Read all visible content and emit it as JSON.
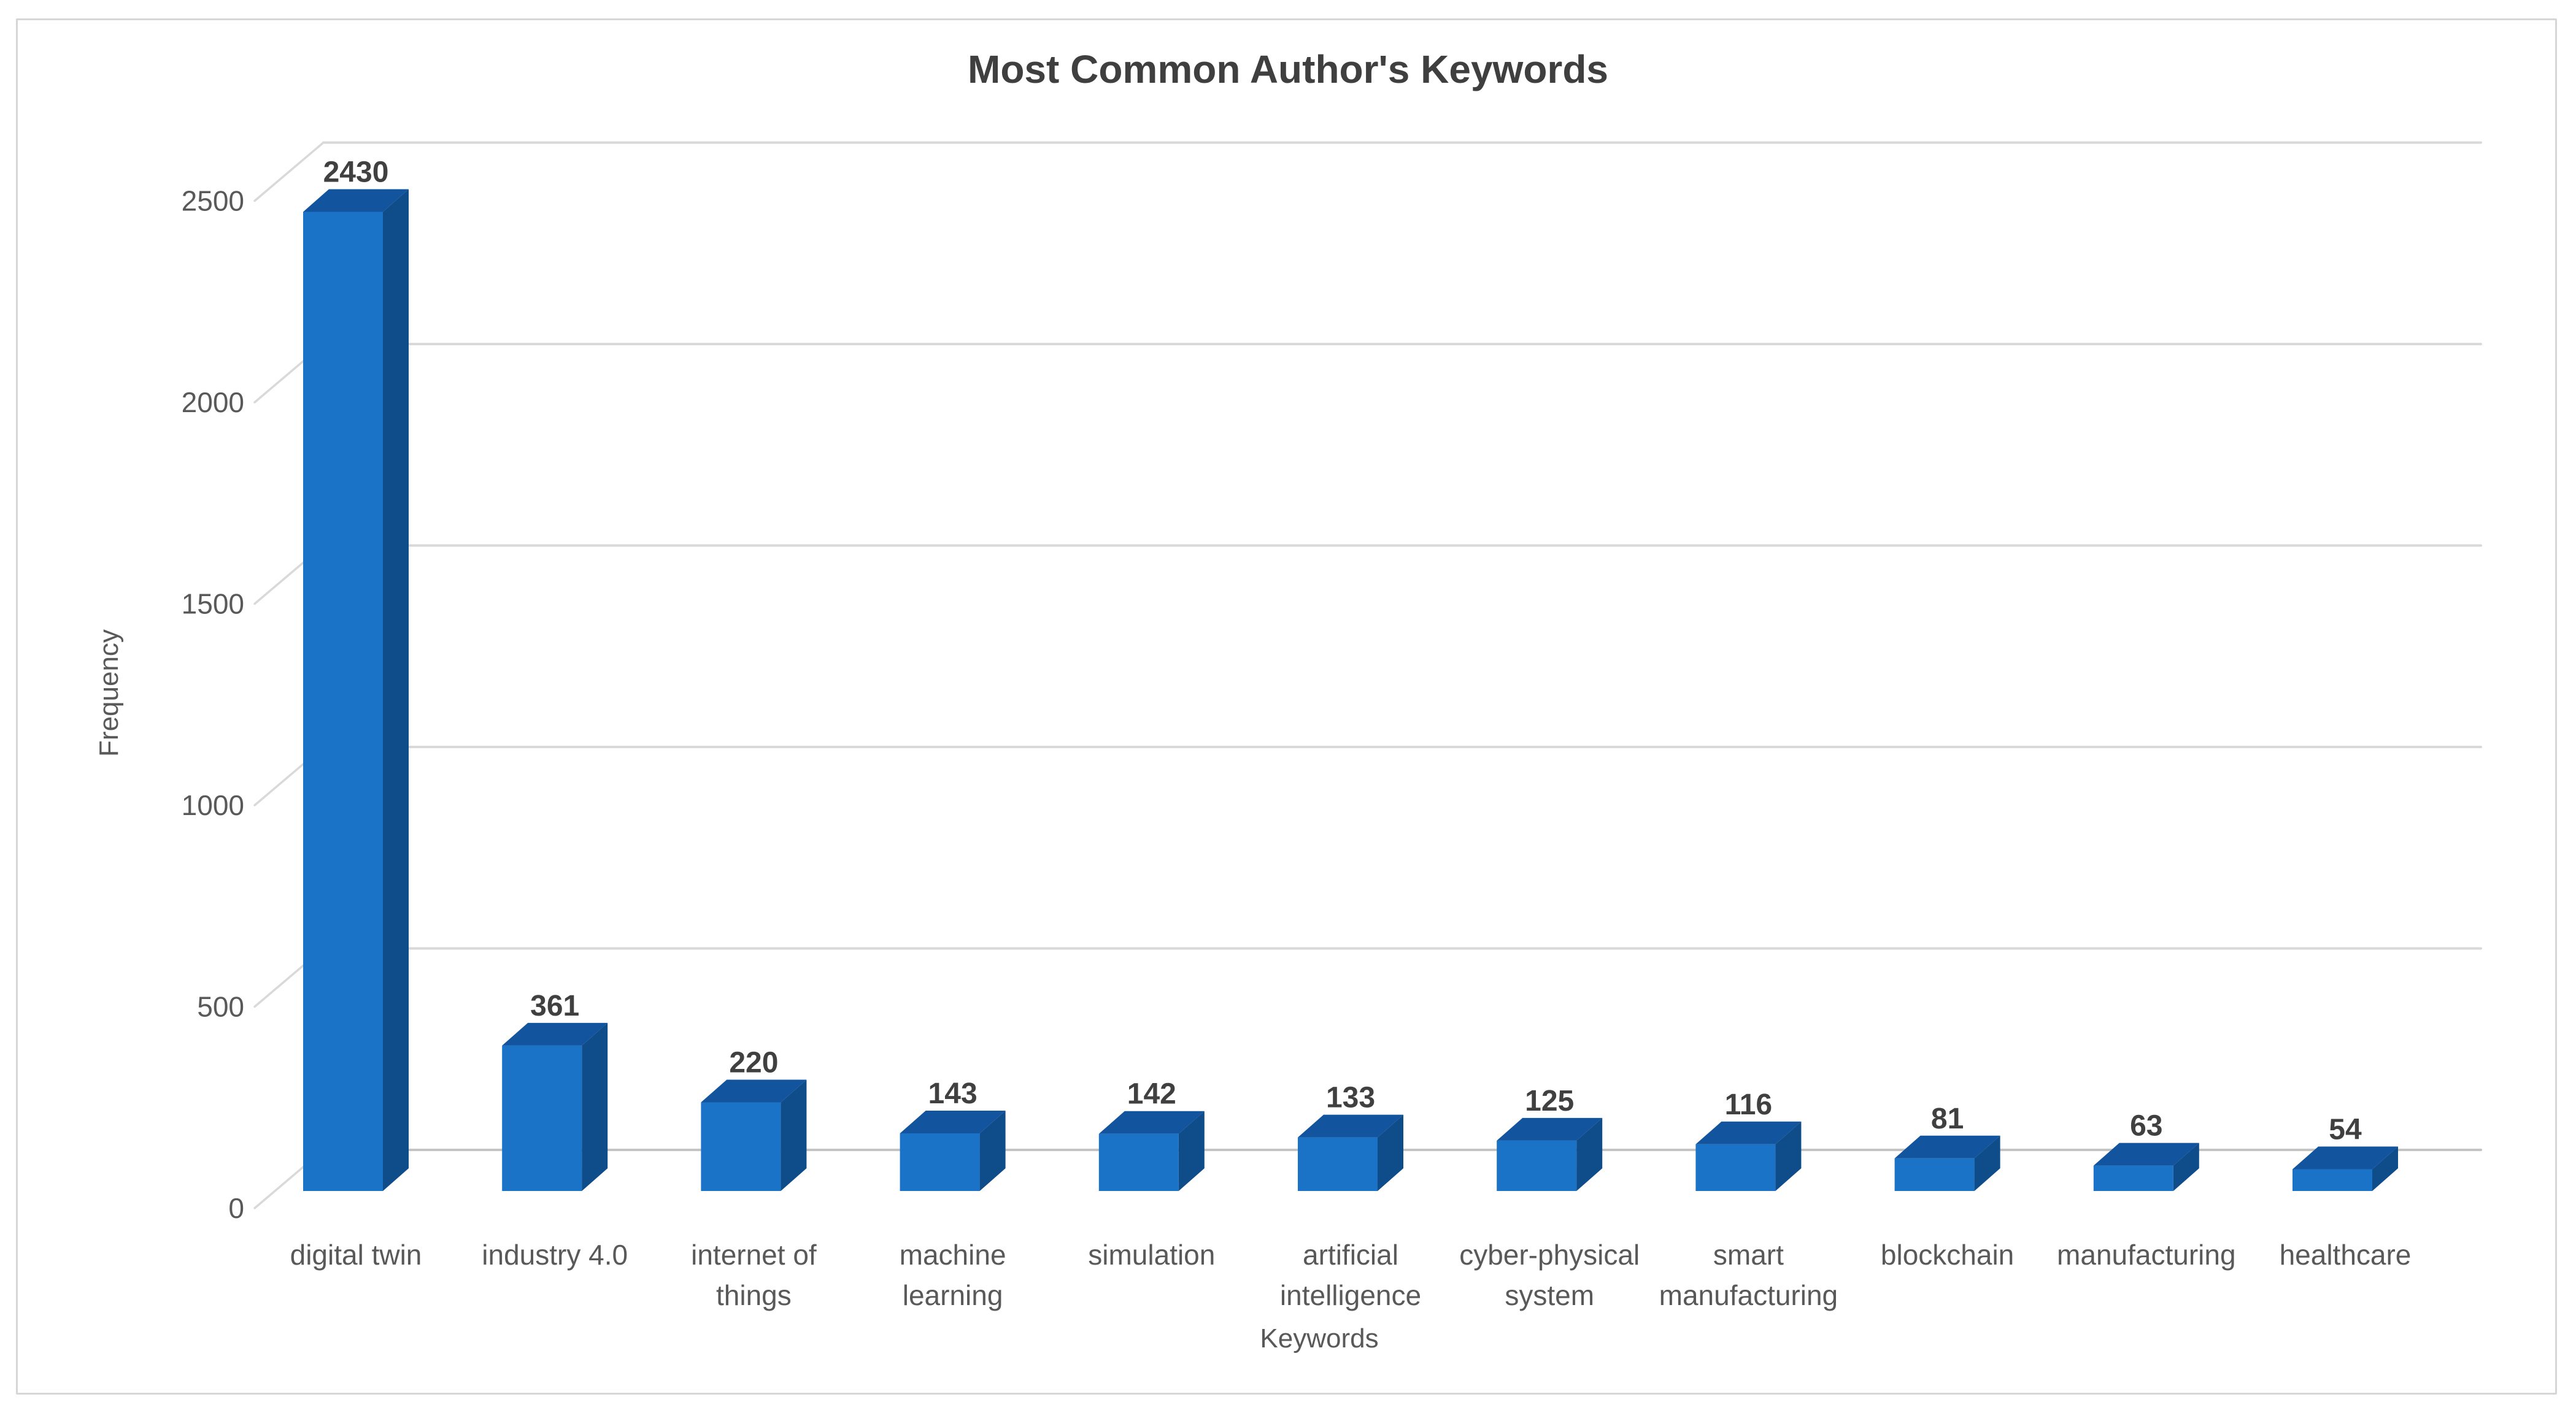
{
  "chart_data": {
    "type": "bar",
    "style": "3d-column",
    "title": "Most Common Author's Keywords",
    "xlabel": "Keywords",
    "ylabel": "Frequency",
    "categories": [
      {
        "label": "digital twin",
        "lines": [
          "digital twin"
        ]
      },
      {
        "label": "industry 4.0",
        "lines": [
          "industry 4.0"
        ]
      },
      {
        "label": "internet of things",
        "lines": [
          "internet of",
          "things"
        ]
      },
      {
        "label": "machine learning",
        "lines": [
          "machine",
          "learning"
        ]
      },
      {
        "label": "simulation",
        "lines": [
          "simulation"
        ]
      },
      {
        "label": "artificial intelligence",
        "lines": [
          "artificial",
          "intelligence"
        ]
      },
      {
        "label": "cyber-physical system",
        "lines": [
          "cyber-physical",
          "system"
        ]
      },
      {
        "label": "smart manufacturing",
        "lines": [
          "smart",
          "manufacturing"
        ]
      },
      {
        "label": "blockchain",
        "lines": [
          "blockchain"
        ]
      },
      {
        "label": "manufacturing",
        "lines": [
          "manufacturing"
        ]
      },
      {
        "label": "healthcare",
        "lines": [
          "healthcare"
        ]
      }
    ],
    "values": [
      2430,
      361,
      220,
      143,
      142,
      133,
      125,
      116,
      81,
      63,
      54
    ],
    "data_labels": [
      "2430",
      "361",
      "220",
      "143",
      "142",
      "133",
      "125",
      "116",
      "81",
      "63",
      "54"
    ],
    "y_ticks": [
      0,
      500,
      1000,
      1500,
      2000,
      2500
    ],
    "ylim": [
      0,
      2500
    ],
    "grid": true,
    "legend": false,
    "colors": {
      "bar_front": "#1b73c8",
      "bar_top": "#12549e",
      "bar_side": "#0f4c8a",
      "gridline": "#d9d9d9",
      "baseline": "#c4c4c4",
      "tick_label": "#595959",
      "category_label": "#595959",
      "axis_title": "#595959",
      "data_label": "#404040",
      "title": "#3f3f3f",
      "frame_border": "#d6d6d6",
      "background": "#ffffff"
    }
  }
}
